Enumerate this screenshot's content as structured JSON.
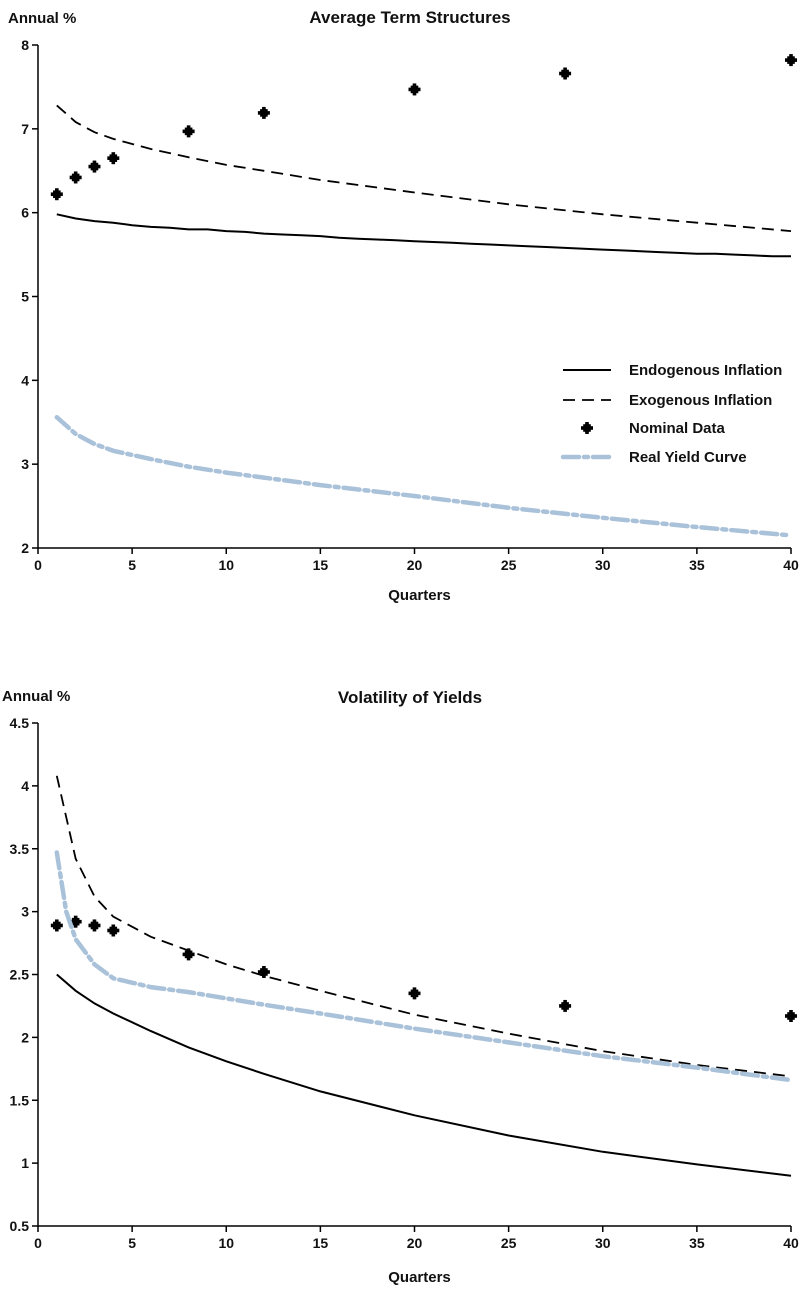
{
  "chart_data": [
    {
      "type": "line",
      "title": "Average Term Structures",
      "ylabel": "Annual %",
      "xlabel": "Quarters",
      "xlim": [
        0,
        40
      ],
      "ylim": [
        2,
        8
      ],
      "xticks": [
        0,
        5,
        10,
        15,
        20,
        25,
        30,
        35,
        40
      ],
      "yticks": [
        2,
        3,
        4,
        5,
        6,
        7,
        8
      ],
      "grid": false,
      "legend": "right",
      "series": [
        {
          "name": "Endogenous Inflation",
          "style": "solid",
          "color": "#000000",
          "x": [
            1,
            2,
            3,
            4,
            5,
            6,
            7,
            8,
            9,
            10,
            11,
            12,
            13,
            14,
            15,
            16,
            17,
            18,
            19,
            20,
            21,
            22,
            23,
            24,
            25,
            26,
            27,
            28,
            29,
            30,
            31,
            32,
            33,
            34,
            35,
            36,
            37,
            38,
            39,
            40
          ],
          "y": [
            5.98,
            5.93,
            5.9,
            5.88,
            5.85,
            5.83,
            5.82,
            5.8,
            5.8,
            5.78,
            5.77,
            5.75,
            5.74,
            5.73,
            5.72,
            5.7,
            5.69,
            5.68,
            5.67,
            5.66,
            5.65,
            5.64,
            5.63,
            5.62,
            5.61,
            5.6,
            5.59,
            5.58,
            5.57,
            5.56,
            5.55,
            5.54,
            5.53,
            5.52,
            5.51,
            5.51,
            5.5,
            5.49,
            5.48,
            5.48
          ]
        },
        {
          "name": "Exogenous Inflation",
          "style": "dashed",
          "color": "#000000",
          "x": [
            1,
            2,
            3,
            4,
            6,
            8,
            10,
            12,
            15,
            20,
            25,
            30,
            35,
            40
          ],
          "y": [
            7.28,
            7.08,
            6.96,
            6.88,
            6.76,
            6.66,
            6.57,
            6.5,
            6.39,
            6.24,
            6.1,
            5.98,
            5.88,
            5.78
          ]
        },
        {
          "name": "Nominal Data",
          "style": "markers",
          "color": "#000000",
          "x": [
            1,
            2,
            3,
            4,
            8,
            12,
            20,
            28,
            40
          ],
          "y": [
            6.22,
            6.42,
            6.55,
            6.65,
            6.97,
            7.19,
            7.47,
            7.66,
            7.82
          ]
        },
        {
          "name": "Real Yield Curve",
          "style": "dashdot",
          "color": "#a9c2d9",
          "x": [
            1,
            2,
            3,
            4,
            6,
            8,
            10,
            12,
            15,
            20,
            25,
            30,
            35,
            40
          ],
          "y": [
            3.56,
            3.36,
            3.24,
            3.16,
            3.06,
            2.97,
            2.9,
            2.84,
            2.75,
            2.62,
            2.48,
            2.36,
            2.25,
            2.15
          ]
        }
      ]
    },
    {
      "type": "line",
      "title": "Volatility of Yields",
      "ylabel": "Annual %",
      "xlabel": "Quarters",
      "xlim": [
        0,
        40
      ],
      "ylim": [
        0.5,
        4.5
      ],
      "xticks": [
        0,
        5,
        10,
        15,
        20,
        25,
        30,
        35,
        40
      ],
      "yticks": [
        0.5,
        1,
        1.5,
        2,
        2.5,
        3,
        3.5,
        4,
        4.5
      ],
      "grid": false,
      "legend": "none",
      "series": [
        {
          "name": "Endogenous Inflation",
          "style": "solid",
          "color": "#000000",
          "x": [
            1,
            2,
            3,
            4,
            6,
            8,
            10,
            12,
            15,
            20,
            25,
            30,
            35,
            40
          ],
          "y": [
            2.5,
            2.37,
            2.27,
            2.19,
            2.05,
            1.92,
            1.81,
            1.71,
            1.57,
            1.38,
            1.22,
            1.09,
            0.99,
            0.9
          ]
        },
        {
          "name": "Exogenous Inflation",
          "style": "dashed",
          "color": "#000000",
          "x": [
            1,
            2,
            3,
            4,
            6,
            8,
            10,
            12,
            15,
            20,
            25,
            30,
            35,
            40
          ],
          "y": [
            4.08,
            3.42,
            3.12,
            2.96,
            2.8,
            2.69,
            2.58,
            2.49,
            2.37,
            2.18,
            2.03,
            1.89,
            1.78,
            1.69
          ]
        },
        {
          "name": "Nominal Data",
          "style": "markers",
          "color": "#000000",
          "x": [
            1,
            2,
            3,
            4,
            8,
            12,
            20,
            28,
            40
          ],
          "y": [
            2.89,
            2.92,
            2.89,
            2.85,
            2.66,
            2.52,
            2.35,
            2.25,
            2.17
          ]
        },
        {
          "name": "Real Yield Curve",
          "style": "dashdot",
          "color": "#a9c2d9",
          "x": [
            1,
            1.5,
            2,
            3,
            4,
            6,
            8,
            10,
            12,
            15,
            20,
            25,
            30,
            35,
            40
          ],
          "y": [
            3.47,
            3.0,
            2.78,
            2.58,
            2.47,
            2.4,
            2.36,
            2.31,
            2.26,
            2.19,
            2.07,
            1.96,
            1.85,
            1.76,
            1.66
          ]
        }
      ]
    }
  ]
}
